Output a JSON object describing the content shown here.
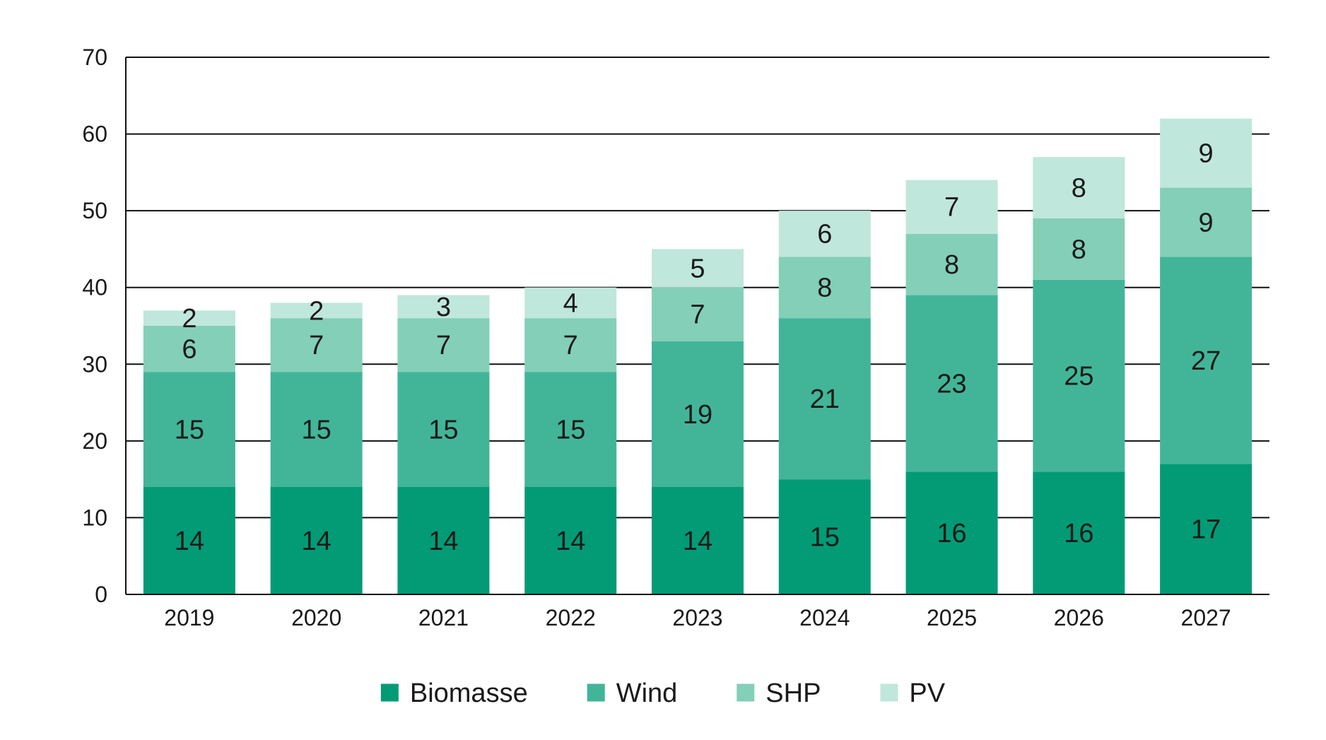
{
  "chart_data": {
    "type": "bar",
    "stacked": true,
    "categories": [
      "2019",
      "2020",
      "2021",
      "2022",
      "2023",
      "2024",
      "2025",
      "2026",
      "2027"
    ],
    "series": [
      {
        "name": "Biomasse",
        "color": "#029b75",
        "values": [
          14,
          14,
          14,
          14,
          14,
          15,
          16,
          16,
          17
        ]
      },
      {
        "name": "Wind",
        "color": "#42b598",
        "values": [
          15,
          15,
          15,
          15,
          19,
          21,
          23,
          25,
          27
        ]
      },
      {
        "name": "SHP",
        "color": "#83cfb8",
        "values": [
          6,
          7,
          7,
          7,
          7,
          8,
          8,
          8,
          9
        ]
      },
      {
        "name": "PV",
        "color": "#c0e7db",
        "values": [
          2,
          2,
          3,
          4,
          5,
          6,
          7,
          8,
          9
        ]
      }
    ],
    "ylim": [
      0,
      70
    ],
    "yticks": [
      0,
      10,
      20,
      30,
      40,
      50,
      60,
      70
    ],
    "grid": true,
    "legend_position": "bottom"
  }
}
